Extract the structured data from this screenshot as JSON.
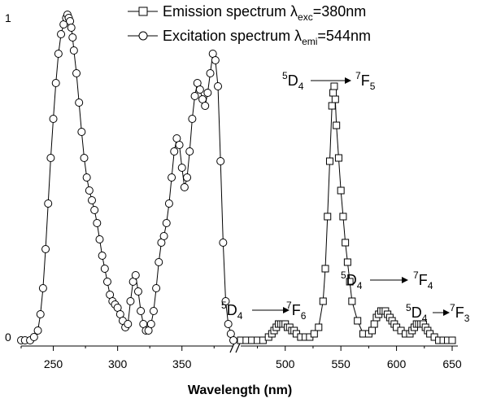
{
  "chart_data": {
    "type": "line",
    "xlabel": "Wavelength (nm)",
    "ylabel": "",
    "y_ticks": [
      "0",
      "1"
    ],
    "ylim": [
      0,
      1.05
    ],
    "axis_break": true,
    "segments": [
      {
        "xlim": [
          225,
          390
        ],
        "ticks": [
          250,
          300,
          350
        ],
        "tick_labels": [
          "250",
          "300",
          "350"
        ]
      },
      {
        "xlim": [
          460,
          650
        ],
        "ticks": [
          500,
          550,
          600,
          650
        ],
        "tick_labels": [
          "500",
          "550",
          "600",
          "650"
        ]
      }
    ],
    "series": [
      {
        "name": "Excitation spectrum λemi=544nm",
        "legend_main": "Excitation spectrum λ",
        "legend_sub": "emi",
        "legend_tail": "=544nm",
        "marker": "circle",
        "segment": 0,
        "x": [
          225,
          228,
          232,
          235,
          238,
          240,
          242,
          244,
          246,
          248,
          250,
          252,
          254,
          256,
          258,
          260,
          261,
          262,
          263,
          264,
          265,
          266,
          268,
          270,
          272,
          274,
          276,
          278,
          280,
          282,
          284,
          286,
          288,
          290,
          292,
          294,
          296,
          298,
          300,
          302,
          304,
          306,
          308,
          310,
          312,
          314,
          316,
          318,
          320,
          322,
          324,
          326,
          328,
          330,
          332,
          334,
          336,
          338,
          340,
          342,
          344,
          346,
          348,
          350,
          352,
          354,
          356,
          358,
          360,
          362,
          364,
          366,
          368,
          370,
          372,
          374,
          376,
          378,
          380,
          382,
          384,
          386,
          388,
          390
        ],
        "y": [
          0.0,
          0.0,
          0.0,
          0.01,
          0.03,
          0.08,
          0.16,
          0.28,
          0.42,
          0.56,
          0.68,
          0.79,
          0.88,
          0.94,
          0.97,
          0.99,
          1.0,
          0.99,
          0.98,
          0.96,
          0.93,
          0.89,
          0.82,
          0.73,
          0.64,
          0.56,
          0.5,
          0.46,
          0.43,
          0.4,
          0.36,
          0.31,
          0.26,
          0.22,
          0.18,
          0.14,
          0.12,
          0.11,
          0.1,
          0.08,
          0.06,
          0.04,
          0.05,
          0.12,
          0.18,
          0.2,
          0.15,
          0.09,
          0.05,
          0.03,
          0.03,
          0.05,
          0.09,
          0.16,
          0.24,
          0.3,
          0.32,
          0.36,
          0.42,
          0.5,
          0.58,
          0.62,
          0.6,
          0.53,
          0.47,
          0.5,
          0.58,
          0.68,
          0.75,
          0.79,
          0.77,
          0.74,
          0.72,
          0.76,
          0.82,
          0.88,
          0.86,
          0.78,
          0.55,
          0.3,
          0.12,
          0.05,
          0.02,
          0.0
        ]
      },
      {
        "name": "Emission spectrum λexc=380nm",
        "legend_main": "Emission spectrum λ",
        "legend_sub": "exc",
        "legend_tail": "=380nm",
        "marker": "square",
        "segment": 1,
        "x": [
          460,
          465,
          470,
          475,
          480,
          485,
          488,
          490,
          492,
          494,
          496,
          498,
          500,
          502,
          504,
          506,
          508,
          510,
          514,
          518,
          522,
          526,
          530,
          534,
          536,
          538,
          540,
          542,
          543,
          544,
          545,
          546,
          548,
          550,
          552,
          554,
          556,
          558,
          560,
          565,
          570,
          575,
          578,
          580,
          582,
          584,
          586,
          588,
          590,
          592,
          594,
          596,
          598,
          600,
          604,
          608,
          612,
          614,
          616,
          618,
          620,
          622,
          624,
          626,
          628,
          630,
          634,
          638,
          642,
          646,
          650
        ],
        "y": [
          0.0,
          0.0,
          0.0,
          0.0,
          0.0,
          0.01,
          0.02,
          0.03,
          0.04,
          0.05,
          0.05,
          0.05,
          0.05,
          0.04,
          0.04,
          0.03,
          0.03,
          0.02,
          0.01,
          0.01,
          0.01,
          0.02,
          0.04,
          0.12,
          0.22,
          0.38,
          0.55,
          0.72,
          0.76,
          0.78,
          0.74,
          0.66,
          0.56,
          0.46,
          0.38,
          0.3,
          0.24,
          0.18,
          0.12,
          0.06,
          0.02,
          0.02,
          0.03,
          0.05,
          0.07,
          0.08,
          0.09,
          0.09,
          0.09,
          0.08,
          0.07,
          0.06,
          0.05,
          0.04,
          0.03,
          0.02,
          0.02,
          0.03,
          0.04,
          0.05,
          0.05,
          0.05,
          0.05,
          0.04,
          0.03,
          0.02,
          0.01,
          0.0,
          0.0,
          0.0,
          0.0
        ]
      }
    ],
    "annotations": [
      {
        "id": "5d4-7f5",
        "left_sup": "5",
        "left": "D",
        "left_sub": "4",
        "right_sup": "7",
        "right": "F",
        "right_sub": "5"
      },
      {
        "id": "5d4-7f4",
        "left_sup": "5",
        "left": "D",
        "left_sub": "4",
        "right_sup": "7",
        "right": "F",
        "right_sub": "4"
      },
      {
        "id": "5d4-7f6",
        "left_sup": "5",
        "left": "D",
        "left_sub": "4",
        "right_sup": "7",
        "right": "F",
        "right_sub": "6"
      },
      {
        "id": "5d4-7f3",
        "left_sup": "5",
        "left": "D",
        "left_sub": "4",
        "right_sup": "7",
        "right": "F",
        "right_sub": "3"
      }
    ]
  }
}
